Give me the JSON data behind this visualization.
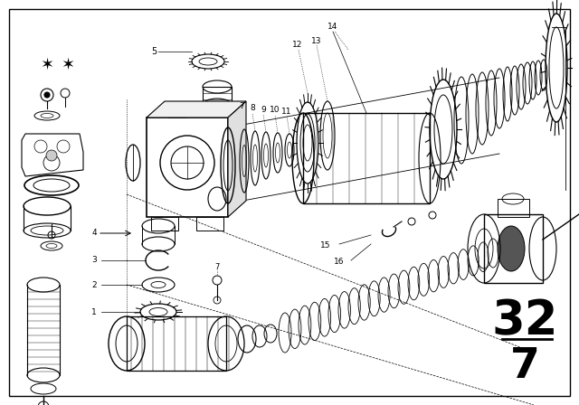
{
  "bg_color": "#ffffff",
  "line_color": "#000000",
  "title_num": "32",
  "title_den": "7",
  "fig_w": 6.4,
  "fig_h": 4.48,
  "dpi": 100
}
